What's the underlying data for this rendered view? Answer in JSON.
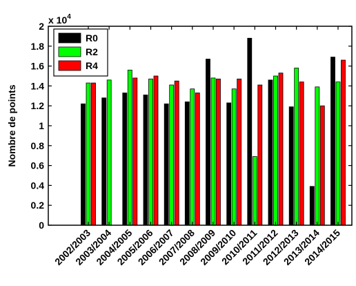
{
  "chart_data": {
    "type": "bar",
    "ylabel": "Nombre de points",
    "y_multiplier_label": "x 10",
    "y_multiplier_exp": "4",
    "ylim": [
      0,
      2
    ],
    "yticks": [
      "0",
      "0.2",
      "0.4",
      "0.6",
      "0.8",
      "1",
      "1.2",
      "1.4",
      "1.6",
      "1.8",
      "2"
    ],
    "grid": false,
    "legend_position": "top-left",
    "categories": [
      "2002/2003",
      "2003/2004",
      "2004/2005",
      "2005/2006",
      "2006/2007",
      "2007/2008",
      "2008/2009",
      "2009/2010",
      "2010/2011",
      "2011/2012",
      "2012/2013",
      "2013/2014",
      "2014/2015"
    ],
    "series": [
      {
        "name": "R0",
        "color": "#000000",
        "values": [
          1.22,
          1.28,
          1.33,
          1.31,
          1.22,
          1.24,
          1.67,
          1.23,
          1.88,
          1.46,
          1.19,
          0.39,
          1.69
        ]
      },
      {
        "name": "R2",
        "color": "#00ff00",
        "values": [
          1.43,
          1.46,
          1.56,
          1.47,
          1.41,
          1.37,
          1.48,
          1.37,
          0.69,
          1.5,
          1.58,
          1.39,
          1.44
        ]
      },
      {
        "name": "R4",
        "color": "#ff0000",
        "values": [
          1.43,
          null,
          1.48,
          1.5,
          1.45,
          1.33,
          1.47,
          1.47,
          1.41,
          1.53,
          1.44,
          1.2,
          1.66
        ]
      }
    ]
  }
}
